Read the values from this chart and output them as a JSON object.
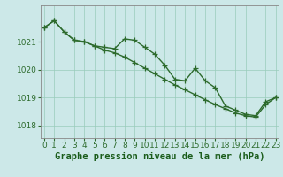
{
  "hours": [
    0,
    1,
    2,
    3,
    4,
    5,
    6,
    7,
    8,
    9,
    10,
    11,
    12,
    13,
    14,
    15,
    16,
    17,
    18,
    19,
    20,
    21,
    22,
    23
  ],
  "line_wavy": [
    1021.5,
    1021.75,
    1021.35,
    1021.05,
    1021.0,
    1020.85,
    1020.8,
    1020.75,
    1021.1,
    1021.05,
    1020.8,
    1020.55,
    1020.15,
    1019.65,
    1019.6,
    1020.05,
    1019.6,
    1019.35,
    1018.7,
    1018.55,
    1018.4,
    1018.35,
    1018.85,
    1019.0
  ],
  "line_smooth": [
    1021.5,
    1021.75,
    1021.35,
    1021.05,
    1021.0,
    1020.85,
    1020.7,
    1020.6,
    1020.45,
    1020.25,
    1020.05,
    1019.85,
    1019.65,
    1019.45,
    1019.28,
    1019.1,
    1018.92,
    1018.75,
    1018.6,
    1018.45,
    1018.35,
    1018.3,
    1018.75,
    1019.0
  ],
  "bg_color": "#cce8e8",
  "line_color": "#2d6b2d",
  "grid_color": "#99ccbb",
  "xlabel": "Graphe pression niveau de la mer (hPa)",
  "xlabel_color": "#1a5c1a",
  "tick_color": "#2d6b2d",
  "axis_color": "#888888",
  "ylim": [
    1017.55,
    1022.3
  ],
  "yticks": [
    1018,
    1019,
    1020,
    1021
  ],
  "xticks": [
    0,
    1,
    2,
    3,
    4,
    5,
    6,
    7,
    8,
    9,
    10,
    11,
    12,
    13,
    14,
    15,
    16,
    17,
    18,
    19,
    20,
    21,
    22,
    23
  ],
  "marker": "+",
  "markersize": 4,
  "linewidth": 1.0,
  "tick_fontsize": 6.5,
  "xlabel_fontsize": 7.5
}
